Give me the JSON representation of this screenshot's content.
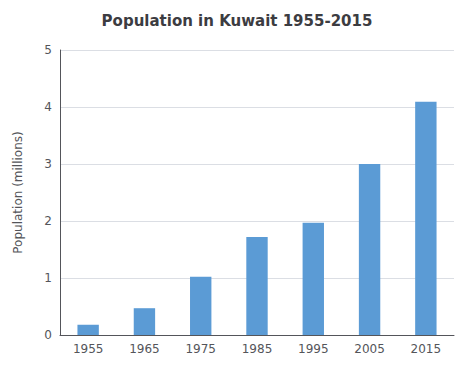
{
  "chart_data": {
    "type": "bar",
    "title": "Population in Kuwait 1955-2015",
    "ylabel": "Population (millions)",
    "categories": [
      1955,
      1965,
      1975,
      1985,
      1995,
      2005,
      2015
    ],
    "values": [
      0.18,
      0.47,
      1.02,
      1.72,
      1.97,
      3.0,
      4.09
    ],
    "color": "#5B9BD5",
    "ylim": [
      0,
      5
    ],
    "yticks": [
      0,
      1,
      2,
      3,
      4,
      5
    ],
    "grid": true
  }
}
